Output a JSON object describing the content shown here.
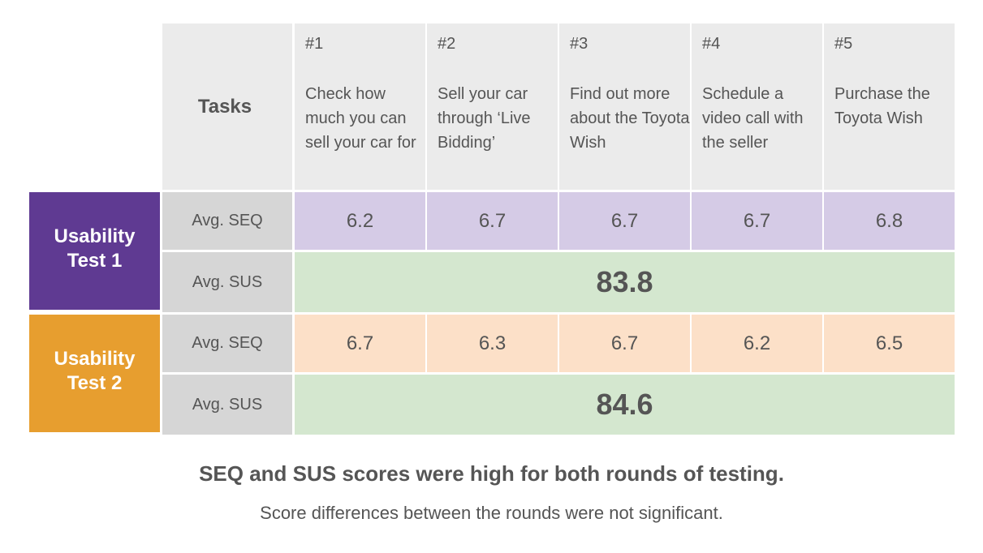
{
  "header": {
    "tasks_label": "Tasks"
  },
  "colors": {
    "test1": "#5f3a92",
    "test2": "#e79e2f",
    "seq_test1": "#d5cbe6",
    "seq_test2": "#fce0c8",
    "sus": "#d4e7cf",
    "header_bg": "#ebebeb",
    "label_bg": "#d6d6d6"
  },
  "chart_data": {
    "type": "table",
    "tasks": [
      {
        "num": "#1",
        "text": "Check how much you can sell your car for"
      },
      {
        "num": "#2",
        "text": "Sell your car through ‘Live Bidding’"
      },
      {
        "num": "#3",
        "text": "Find out more about the Toyota Wish"
      },
      {
        "num": "#4",
        "text": "Schedule a video call with the seller"
      },
      {
        "num": "#5",
        "text": "Purchase the Toyota Wish"
      }
    ],
    "tests": [
      {
        "name": "Usability Test 1",
        "seq_label": "Avg. SEQ",
        "seq": [
          "6.2",
          "6.7",
          "6.7",
          "6.7",
          "6.8"
        ],
        "sus_label": "Avg. SUS",
        "sus": "83.8"
      },
      {
        "name": "Usability Test 2",
        "seq_label": "Avg. SEQ",
        "seq": [
          "6.7",
          "6.3",
          "6.7",
          "6.2",
          "6.5"
        ],
        "sus_label": "Avg. SUS",
        "sus": "84.6"
      }
    ]
  },
  "caption": {
    "title": "SEQ and SUS scores were high for both rounds of testing.",
    "subtitle": "Score differences between the rounds were not significant."
  }
}
